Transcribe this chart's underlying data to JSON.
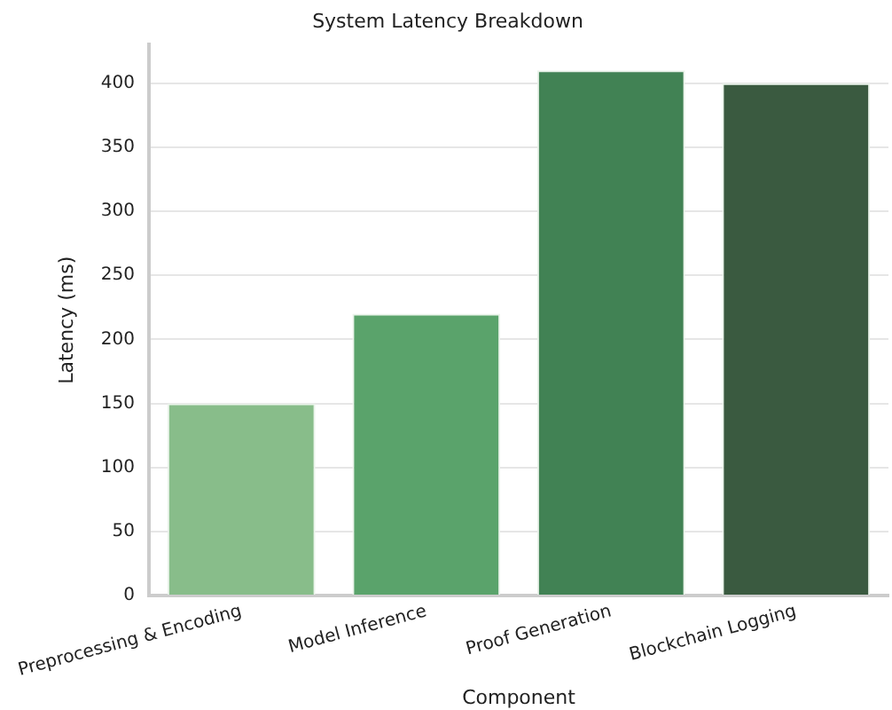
{
  "chart_data": {
    "type": "bar",
    "title": "System Latency Breakdown",
    "xlabel": "Component",
    "ylabel": "Latency (ms)",
    "categories": [
      "Preprocessing & Encoding",
      "Model Inference",
      "Proof Generation",
      "Blockchain Logging"
    ],
    "values": [
      150,
      220,
      410,
      400
    ],
    "colors": [
      "#88bd8a",
      "#5aa36b",
      "#418254",
      "#3a5a40"
    ],
    "ylim": [
      0,
      430
    ],
    "yticks": [
      0,
      50,
      100,
      150,
      200,
      250,
      300,
      350,
      400
    ],
    "grid": "y",
    "legend": false
  }
}
